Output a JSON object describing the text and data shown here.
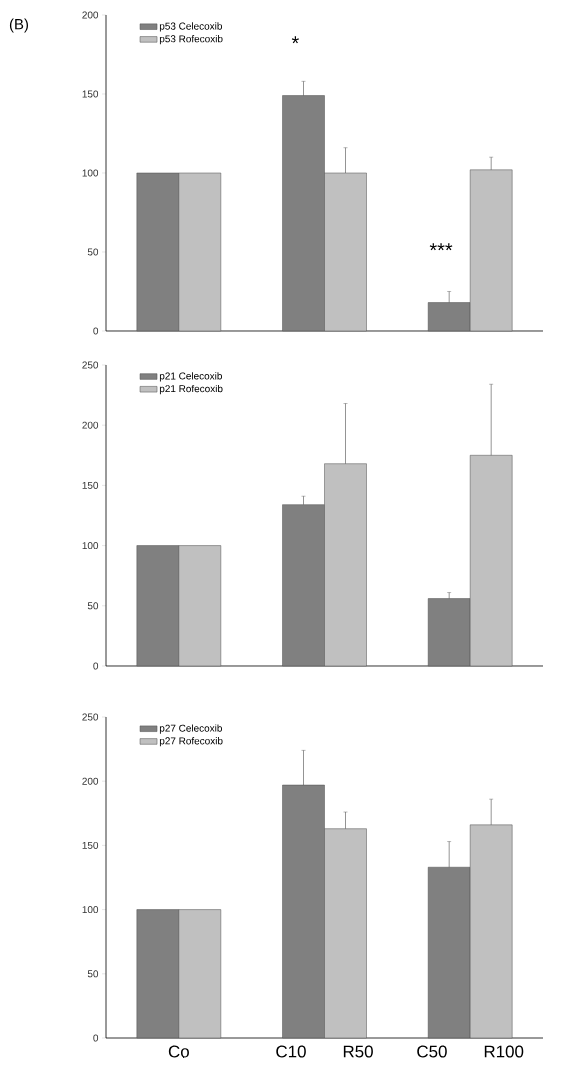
{
  "chart_data": [
    {
      "type": "bar",
      "annotations": [
        "(B)",
        {
          "text": "*",
          "x": "C10 R50",
          "y": 149
        },
        {
          "text": "***",
          "x": "C50 R100",
          "y": 18
        }
      ],
      "categories": [
        "Co",
        "C10 R50",
        "C50 R100"
      ],
      "tick_labels": "y",
      "legend": "top left",
      "ylim": [
        0,
        200
      ],
      "yticks": [
        0,
        50,
        100,
        150,
        200
      ],
      "series": [
        {
          "name": "p53 Celecoxib",
          "color": "#808080",
          "values": [
            100,
            149,
            18
          ],
          "errors": [
            null,
            9,
            7
          ]
        },
        {
          "name": "p53 Rofecoxib",
          "color": "#c0c0c0",
          "values": [
            100,
            100,
            102
          ],
          "errors": [
            null,
            16,
            8
          ]
        }
      ]
    },
    {
      "type": "bar",
      "categories": [
        "Co",
        "C10 R50",
        "C50 R100"
      ],
      "tick_labels": "y",
      "legend": "top left",
      "ylim": [
        0,
        250
      ],
      "yticks": [
        0,
        50,
        100,
        150,
        200,
        250
      ],
      "series": [
        {
          "name": "p21 Celecoxib",
          "color": "#808080",
          "values": [
            100,
            134,
            56
          ],
          "errors": [
            null,
            7,
            5
          ]
        },
        {
          "name": "p21 Rofecoxib",
          "color": "#c0c0c0",
          "values": [
            100,
            168,
            175
          ],
          "errors": [
            null,
            50,
            59
          ]
        }
      ]
    },
    {
      "type": "bar",
      "categories": [
        "Co",
        "C10 R50",
        "C50 R100"
      ],
      "legend": "top left",
      "ylim": [
        0,
        250
      ],
      "yticks": [
        0,
        50,
        100,
        150,
        200,
        250
      ],
      "series": [
        {
          "name": "p27 Celecoxib",
          "color": "#808080",
          "values": [
            100,
            197,
            133
          ],
          "errors": [
            null,
            27,
            20
          ]
        },
        {
          "name": "p27 Rofecoxib",
          "color": "#c0c0c0",
          "values": [
            100,
            163,
            166
          ],
          "errors": [
            null,
            13,
            20
          ]
        }
      ]
    }
  ]
}
